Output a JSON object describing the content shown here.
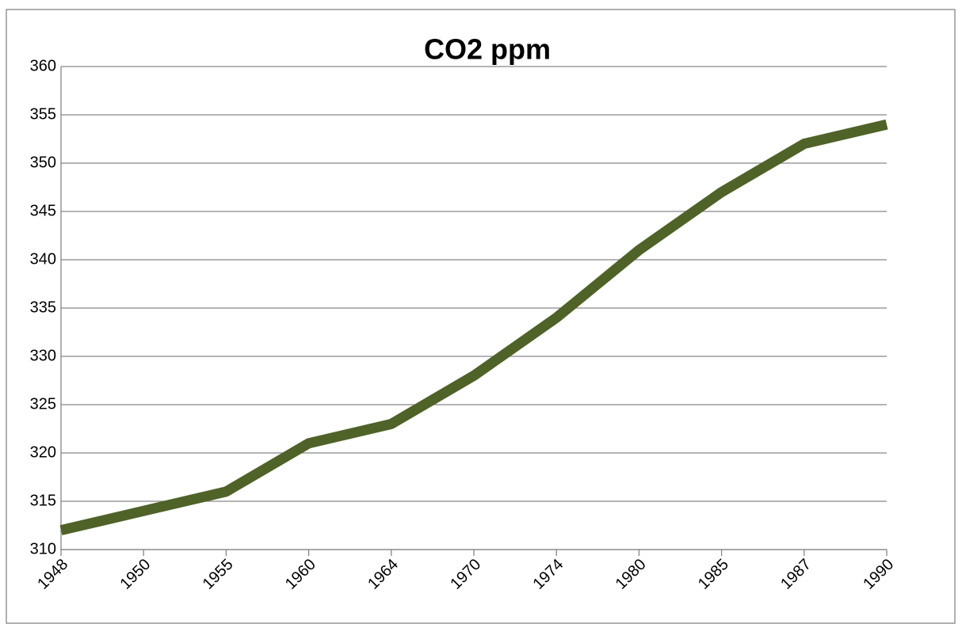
{
  "chart_data": {
    "type": "line",
    "title": "CO2 ppm",
    "categories": [
      "1948",
      "1950",
      "1955",
      "1960",
      "1964",
      "1970",
      "1974",
      "1980",
      "1985",
      "1987",
      "1990"
    ],
    "series": [
      {
        "name": "CO2 ppm",
        "color": "#4f6228",
        "values": [
          312,
          314,
          316,
          321,
          323,
          328,
          334,
          341,
          347,
          352,
          354
        ]
      }
    ],
    "ylim": [
      310,
      360
    ],
    "yticks": [
      310,
      315,
      320,
      325,
      330,
      335,
      340,
      345,
      350,
      355,
      360
    ],
    "grid": true
  }
}
